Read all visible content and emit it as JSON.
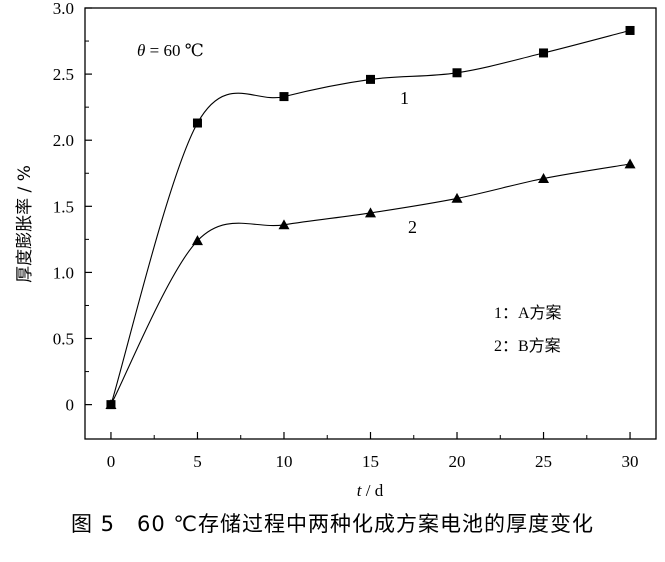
{
  "chart_data": {
    "type": "line",
    "x": [
      0,
      5,
      10,
      15,
      20,
      25,
      30
    ],
    "series": [
      {
        "name": "1",
        "marker": "square",
        "values": [
          0,
          2.13,
          2.33,
          2.46,
          2.51,
          2.66,
          2.83
        ]
      },
      {
        "name": "2",
        "marker": "triangle",
        "values": [
          0,
          1.24,
          1.36,
          1.45,
          1.56,
          1.71,
          1.82
        ]
      }
    ],
    "xlim": [
      -1.5,
      31.5
    ],
    "ylim": [
      -0.26,
      3.0
    ],
    "xticks": [
      "0",
      "5",
      "10",
      "15",
      "20",
      "25",
      "30"
    ],
    "yticks": [
      "0",
      "0.5",
      "1.0",
      "1.5",
      "2.0",
      "2.5",
      "3.0"
    ],
    "xlabel": {
      "var": "t",
      "unit": " / d"
    },
    "ylabel": "厚度膨胀率 / %",
    "annotation": {
      "var": "θ",
      "rest": " = 60 ℃"
    },
    "legend": [
      "1：A方案",
      "2：B方案"
    ],
    "legend_position": "right-middle",
    "grid": false,
    "color": "#000000"
  },
  "caption": "图 5　60 ℃存储过程中两种化成方案电池的厚度变化"
}
